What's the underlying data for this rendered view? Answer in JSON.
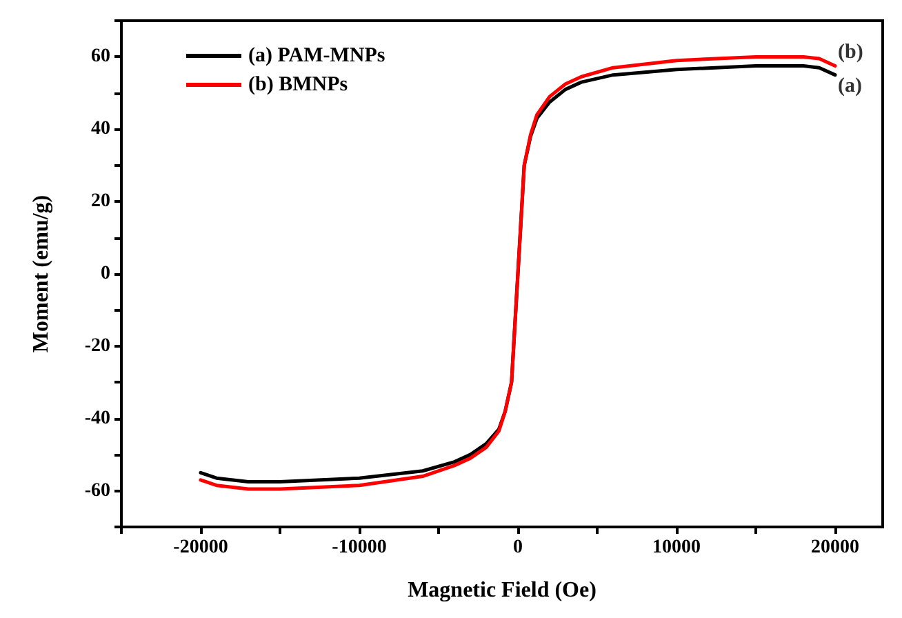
{
  "chart_data": {
    "type": "line",
    "xlabel": "Magnetic Field (Oe)",
    "ylabel": "Moment (emu/g)",
    "xlim": [
      -25000,
      23000
    ],
    "xticks": [
      {
        "value": -25000,
        "label": null
      },
      -20000,
      {
        "value": -15000,
        "label": null
      },
      -10000,
      {
        "value": -5000,
        "label": null
      },
      0,
      {
        "value": 5000,
        "label": null
      },
      10000,
      {
        "value": 15000,
        "label": null
      },
      20000
    ],
    "ylim": [
      -70,
      70
    ],
    "yticks": [
      {
        "value": -70,
        "label": null
      },
      -60,
      {
        "value": -50,
        "label": null
      },
      -40,
      {
        "value": -30,
        "label": null
      },
      -20,
      {
        "value": -10,
        "label": null
      },
      0,
      {
        "value": 10,
        "label": null
      },
      20,
      {
        "value": 30,
        "label": null
      },
      40,
      {
        "value": 50,
        "label": null
      },
      60,
      {
        "value": 70,
        "label": null
      }
    ],
    "x": [
      -20000,
      -19000,
      -17000,
      -15000,
      -10000,
      -6000,
      -4000,
      -3000,
      -2000,
      -1200,
      -800,
      -400,
      0,
      400,
      800,
      1200,
      2000,
      3000,
      4000,
      6000,
      10000,
      15000,
      18000,
      19000,
      20000
    ],
    "series": [
      {
        "name": "(a) PAM-MNPs",
        "color": "#000000",
        "values": [
          -55,
          -56.5,
          -57.5,
          -57.5,
          -56.5,
          -54.5,
          -52,
          -50,
          -47,
          -43,
          -38,
          -30,
          0,
          30,
          38,
          43,
          47.5,
          51,
          53,
          55,
          56.5,
          57.5,
          57.5,
          57,
          55
        ]
      },
      {
        "name": "(b) BMNPs",
        "color": "#ff0000",
        "values": [
          -57,
          -58.5,
          -59.5,
          -59.5,
          -58.5,
          -56,
          -53,
          -51,
          -48,
          -43.5,
          -38,
          -30,
          0,
          30,
          38.5,
          44,
          49,
          52.5,
          54.5,
          57,
          59,
          60,
          60,
          59.5,
          57.5
        ]
      }
    ],
    "annotations": [
      {
        "text": "(b)",
        "x": 20000,
        "y": 57.5
      },
      {
        "text": "(a)",
        "x": 20000,
        "y": 55
      }
    ],
    "legend": "top left",
    "grid": false,
    "marker": "none",
    "line_style": "solid"
  }
}
